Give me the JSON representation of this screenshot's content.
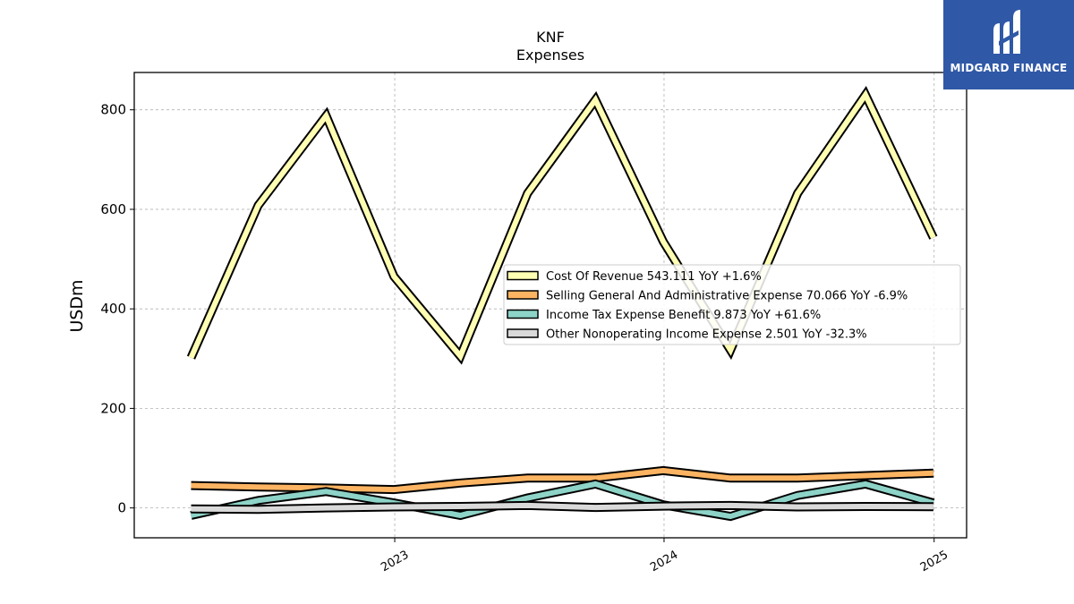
{
  "brand": {
    "name": "MIDGARD FINANCE",
    "icon": "midgard-logo-icon",
    "color": "#2f58a7"
  },
  "chart_data": {
    "type": "line",
    "title": "KNF",
    "subtitle": "Expenses",
    "ylabel": "USDm",
    "xlabel": "",
    "ylim": [
      -60,
      875
    ],
    "xlim": [
      "2022-01-13",
      "2025-02-14"
    ],
    "yticks": [
      0,
      200,
      400,
      600,
      800
    ],
    "xticks": [
      "2023",
      "2024",
      "2025"
    ],
    "grid": true,
    "legend_position": "center-right",
    "x": [
      "2022-03-31",
      "2022-06-30",
      "2022-09-30",
      "2022-12-31",
      "2023-03-31",
      "2023-06-30",
      "2023-09-30",
      "2023-12-31",
      "2024-03-31",
      "2024-06-30",
      "2024-09-30",
      "2024-12-31"
    ],
    "series": [
      {
        "name": "Cost Of Revenue",
        "legend": "Cost Of Revenue  543.111 YoY +1.6%",
        "color": "#ffffb3",
        "values": [
          302,
          608,
          788,
          465,
          305,
          632,
          820,
          535,
          317,
          632,
          830,
          543.111
        ]
      },
      {
        "name": "Selling General And Administrative Expense",
        "legend": "Selling General And Administrative Expense  70.066 YoY -6.9%",
        "color": "#fdb462",
        "values": [
          45,
          42,
          40,
          37,
          50,
          60,
          60,
          75,
          60,
          60,
          65,
          70.066
        ]
      },
      {
        "name": "Income Tax Expense Benefit",
        "legend": "Income Tax Expense Benefit  9.873 YoY +61.6%",
        "color": "#8dd3c7",
        "values": [
          -15,
          15,
          33,
          10,
          -15,
          20,
          48,
          6.1,
          -17,
          25,
          48,
          9.873
        ]
      },
      {
        "name": "Other Nonoperating Income Expense",
        "legend": "Other Nonoperating Income Expense  2.501 YoY -32.3%",
        "color": "#d9d9d9",
        "values": [
          -2,
          -3,
          0,
          2,
          3,
          5,
          1,
          3.7,
          5,
          2,
          3,
          2.501
        ]
      }
    ]
  }
}
